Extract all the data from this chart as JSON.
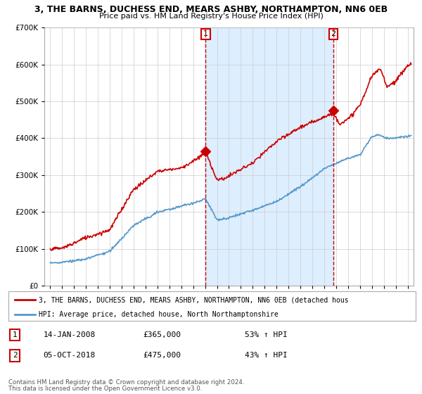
{
  "title": "3, THE BARNS, DUCHESS END, MEARS ASHBY, NORTHAMPTON, NN6 0EB",
  "subtitle": "Price paid vs. HM Land Registry's House Price Index (HPI)",
  "purchase1": {
    "date": "14-JAN-2008",
    "price": 365000,
    "hpi_pct": "53% ↑ HPI",
    "year": 2008.04
  },
  "purchase2": {
    "date": "05-OCT-2018",
    "price": 475000,
    "hpi_pct": "43% ↑ HPI",
    "year": 2018.76
  },
  "legend_line1": "3, THE BARNS, DUCHESS END, MEARS ASHBY, NORTHAMPTON, NN6 0EB (detached hous",
  "legend_line2": "HPI: Average price, detached house, North Northamptonshire",
  "footer1": "Contains HM Land Registry data © Crown copyright and database right 2024.",
  "footer2": "This data is licensed under the Open Government Licence v3.0.",
  "red_color": "#cc0000",
  "blue_color": "#5599cc",
  "shade_color": "#ddeeff",
  "ylim": [
    0,
    700000
  ],
  "xlim_start": 1994.5,
  "xlim_end": 2025.5,
  "xtick_years": [
    1995,
    1996,
    1997,
    1998,
    1999,
    2000,
    2001,
    2002,
    2003,
    2004,
    2005,
    2006,
    2007,
    2008,
    2009,
    2010,
    2011,
    2012,
    2013,
    2014,
    2015,
    2016,
    2017,
    2018,
    2019,
    2020,
    2021,
    2022,
    2023,
    2024,
    2025
  ]
}
